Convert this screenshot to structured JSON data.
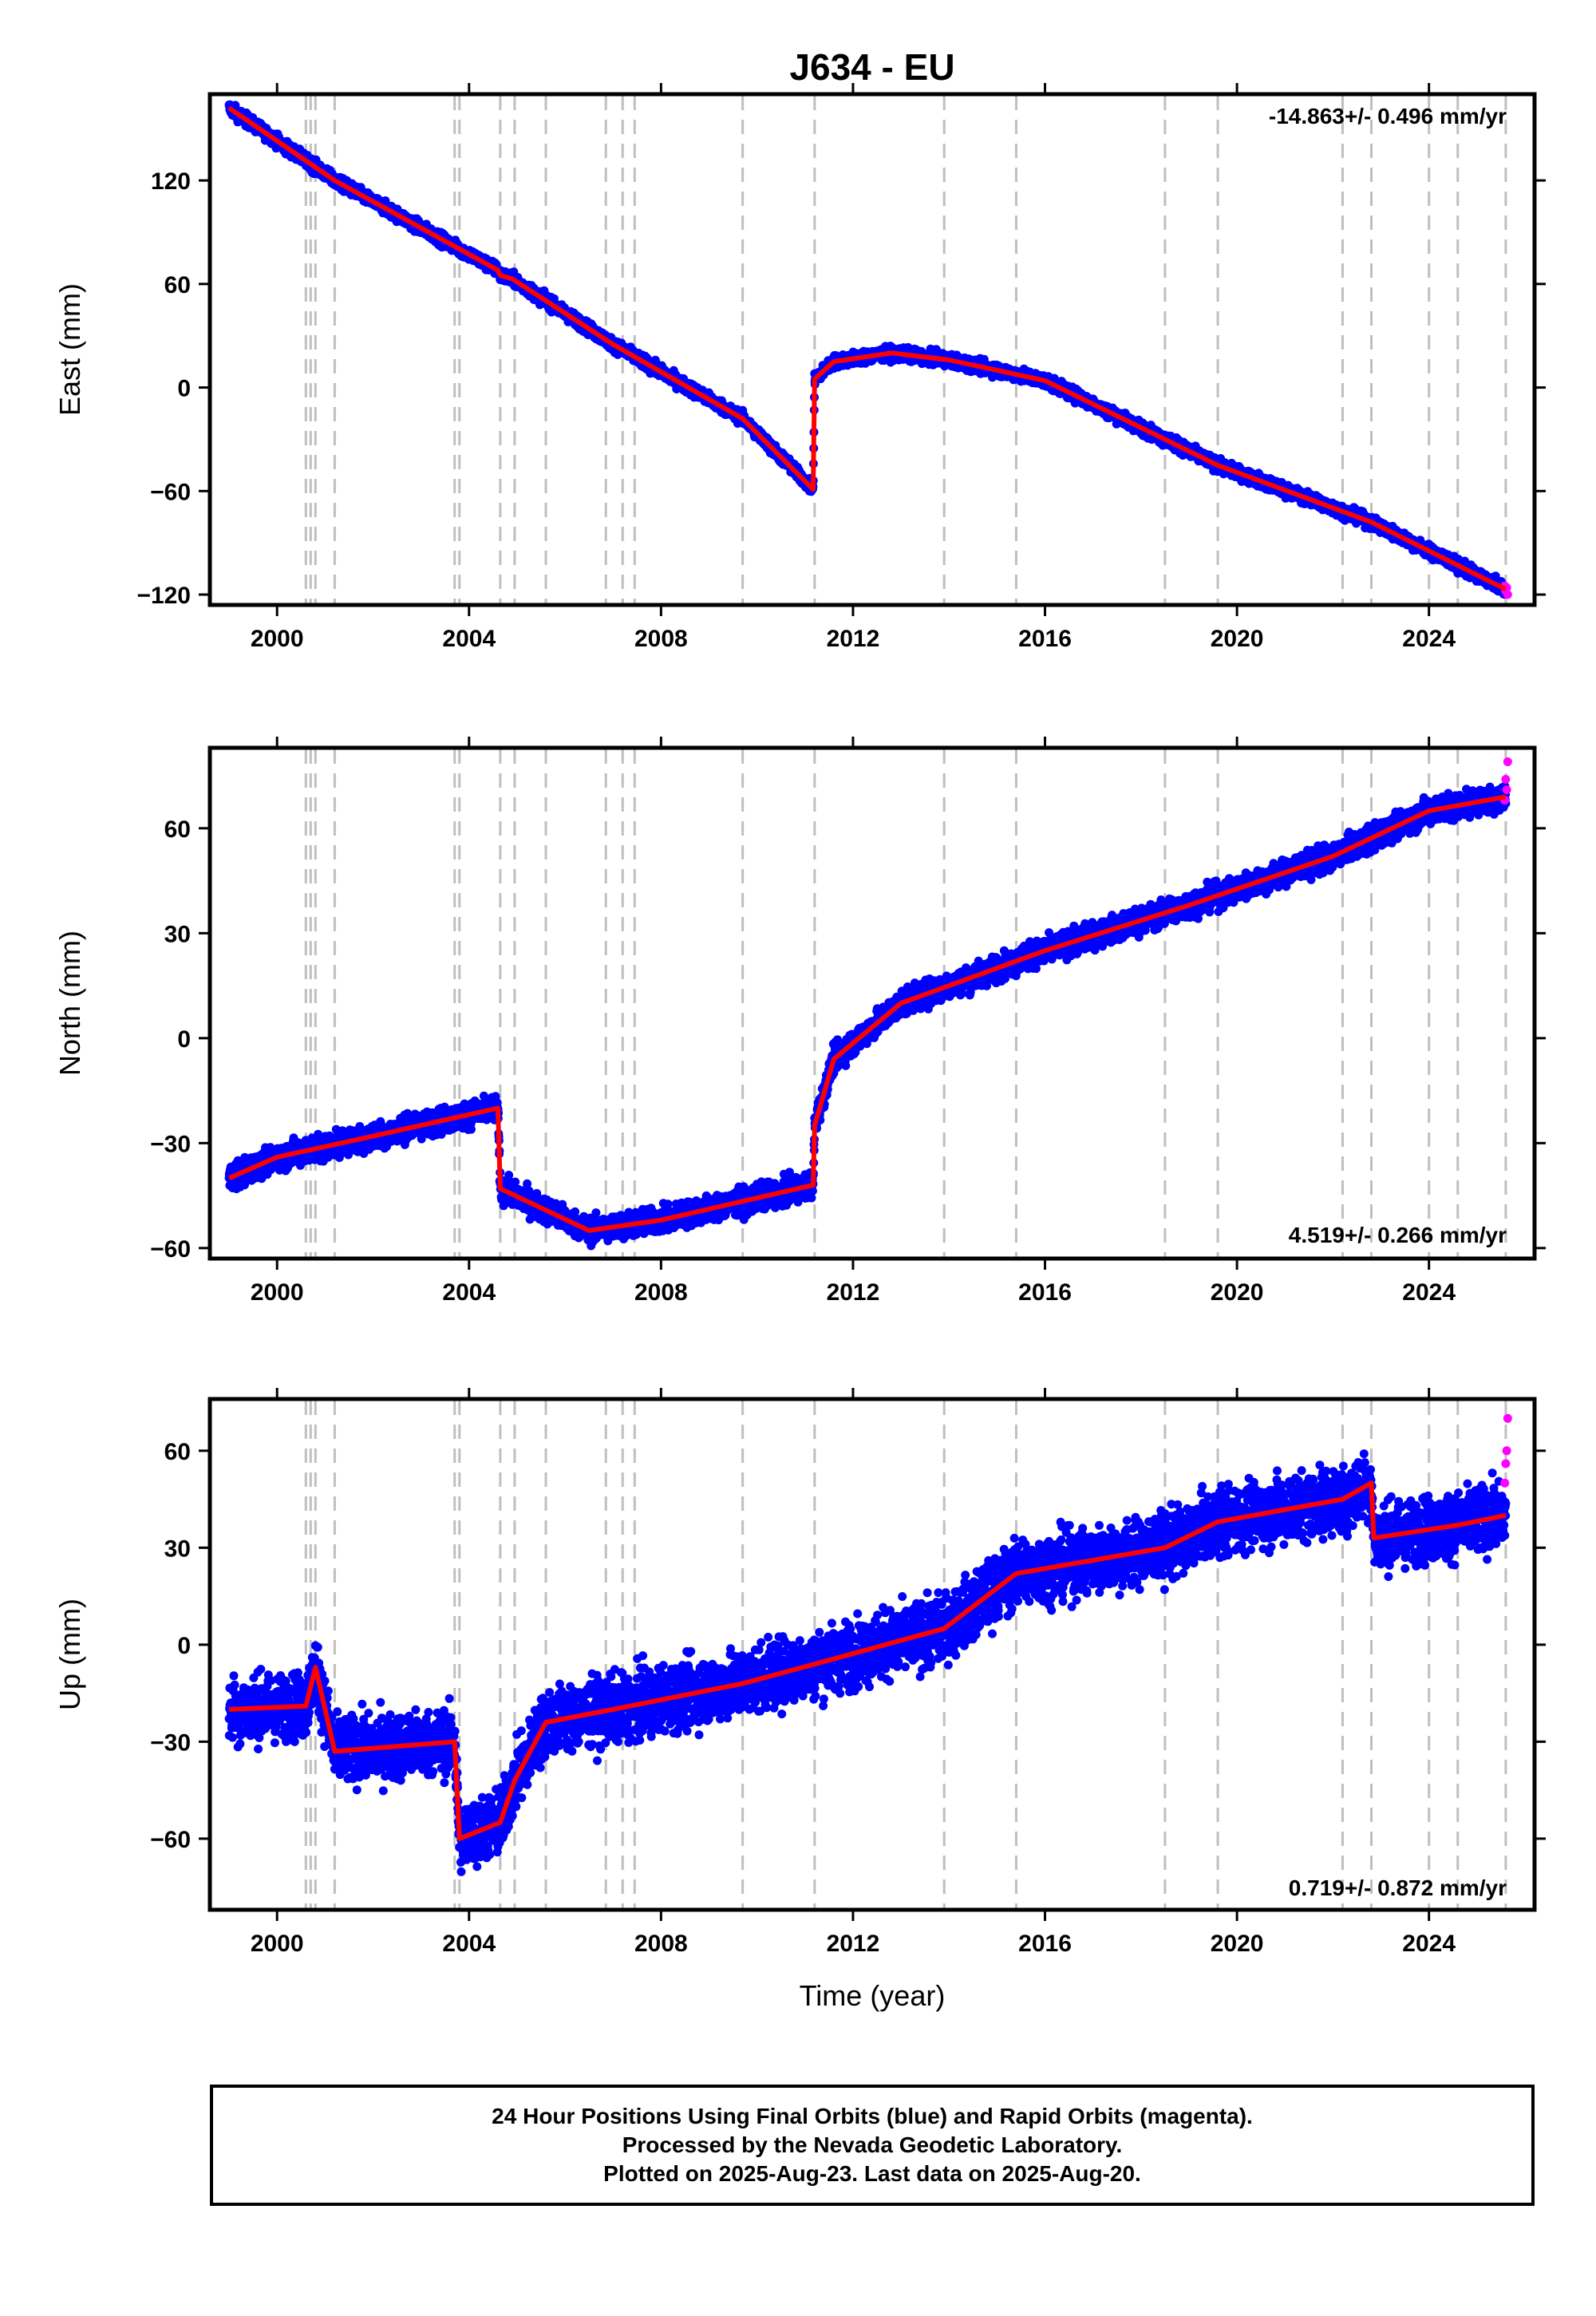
{
  "title": "J634 - EU",
  "xlabel": "Time (year)",
  "x_ticks": [
    "2000",
    "2004",
    "2008",
    "2012",
    "2016",
    "2020",
    "2024"
  ],
  "colors": {
    "final_orbits": "#0000ff",
    "rapid_orbits": "#ff00ff",
    "model": "#ff0000",
    "event_lines": "#bfbfbf"
  },
  "event_lines": [
    2000.6,
    2000.7,
    2000.8,
    2001.2,
    2003.7,
    2003.8,
    2004.65,
    2004.95,
    2005.6,
    2006.85,
    2007.2,
    2007.45,
    2009.7,
    2011.2,
    2013.9,
    2015.4,
    2018.5,
    2019.6,
    2022.2,
    2022.8,
    2024.0,
    2024.6,
    2025.6
  ],
  "chart_data": [
    {
      "type": "scatter",
      "panel": "east",
      "ylabel": "East (mm)",
      "rate_label": "-14.863+/- 0.496 mm/yr",
      "xlim": [
        1998.6,
        2026.2
      ],
      "ylim": [
        -126,
        170
      ],
      "y_ticks": [
        "120",
        "60",
        "0",
        "−60",
        "−120"
      ],
      "y_tick_values": [
        120,
        60,
        0,
        -60,
        -120
      ],
      "noise_mm": 2.5,
      "series": [
        {
          "name": "Final Orbits",
          "x": [
            1999.0,
            2001.2,
            2004.6,
            2004.65,
            2004.9,
            2007.0,
            2009.7,
            2011.17,
            2011.2,
            2011.6,
            2012.8,
            2014.0,
            2016.0,
            2019.6,
            2022.8,
            2024.6,
            2025.6
          ],
          "values": [
            162,
            120,
            68,
            65,
            63,
            25,
            -18,
            -59,
            5,
            15,
            20,
            16,
            4,
            -45,
            -78,
            -103,
            -117
          ]
        },
        {
          "name": "Rapid Orbits",
          "x": [
            2025.58,
            2025.6,
            2025.62,
            2025.64
          ],
          "values": [
            -115,
            -118,
            -116,
            -120
          ]
        },
        {
          "name": "Model",
          "x": [
            1999.0,
            2001.2,
            2004.6,
            2004.65,
            2004.9,
            2007.0,
            2009.7,
            2011.17,
            2011.2,
            2011.6,
            2012.8,
            2014.0,
            2016.0,
            2019.6,
            2022.8,
            2024.6,
            2025.6
          ],
          "values": [
            162,
            120,
            68,
            65,
            63,
            25,
            -18,
            -59,
            5,
            15,
            20,
            16,
            4,
            -45,
            -78,
            -103,
            -117
          ]
        }
      ]
    },
    {
      "type": "scatter",
      "panel": "north",
      "ylabel": "North (mm)",
      "rate_label": "4.519+/- 0.266 mm/yr",
      "xlim": [
        1998.6,
        2026.2
      ],
      "ylim": [
        -63,
        83
      ],
      "y_ticks": [
        "60",
        "30",
        "0",
        "−30",
        "−60"
      ],
      "y_tick_values": [
        60,
        30,
        0,
        -30,
        -60
      ],
      "noise_mm": 2.5,
      "series": [
        {
          "name": "Final Orbits",
          "x": [
            1999.0,
            2000.0,
            2002.0,
            2004.6,
            2004.65,
            2006.5,
            2008.0,
            2011.17,
            2011.2,
            2011.6,
            2013.0,
            2016.0,
            2019.0,
            2022.0,
            2024.0,
            2025.6
          ],
          "values": [
            -40,
            -34,
            -28,
            -20,
            -43,
            -55,
            -52,
            -42,
            -25,
            -6,
            10,
            25,
            38,
            52,
            65,
            69
          ]
        },
        {
          "name": "Rapid Orbits",
          "x": [
            2025.58,
            2025.6,
            2025.62,
            2025.64
          ],
          "values": [
            68,
            74,
            71,
            79
          ]
        },
        {
          "name": "Model",
          "x": [
            1999.0,
            2000.0,
            2002.0,
            2004.6,
            2004.65,
            2006.5,
            2008.0,
            2011.17,
            2011.2,
            2011.6,
            2013.0,
            2016.0,
            2019.0,
            2022.0,
            2024.0,
            2025.6
          ],
          "values": [
            -40,
            -34,
            -28,
            -20,
            -43,
            -55,
            -52,
            -42,
            -25,
            -6,
            10,
            25,
            38,
            52,
            65,
            69
          ]
        }
      ]
    },
    {
      "type": "scatter",
      "panel": "up",
      "ylabel": "Up (mm)",
      "rate_label": "0.719+/- 0.872 mm/yr",
      "xlim": [
        1998.6,
        2026.2
      ],
      "ylim": [
        -82,
        76
      ],
      "y_ticks": [
        "60",
        "30",
        "0",
        "−30",
        "−60"
      ],
      "y_tick_values": [
        60,
        30,
        0,
        -30,
        -60
      ],
      "noise_mm": 7,
      "series": [
        {
          "name": "Final Orbits",
          "x": [
            1999.0,
            2000.6,
            2000.8,
            2001.2,
            2003.7,
            2003.8,
            2004.65,
            2004.95,
            2005.6,
            2007.0,
            2009.7,
            2011.2,
            2013.9,
            2015.4,
            2018.5,
            2019.6,
            2022.2,
            2022.8,
            2022.85,
            2024.6,
            2025.6
          ],
          "values": [
            -20,
            -19,
            -7,
            -33,
            -30,
            -60,
            -55,
            -42,
            -24,
            -20,
            -12,
            -6,
            5,
            22,
            30,
            38,
            45,
            50,
            33,
            37,
            40
          ]
        },
        {
          "name": "Rapid Orbits",
          "x": [
            2025.58,
            2025.6,
            2025.62,
            2025.64
          ],
          "values": [
            50,
            56,
            60,
            70
          ]
        },
        {
          "name": "Model",
          "x": [
            1999.0,
            2000.6,
            2000.8,
            2001.2,
            2003.7,
            2003.8,
            2004.65,
            2004.95,
            2005.6,
            2007.0,
            2009.7,
            2011.2,
            2013.9,
            2015.4,
            2018.5,
            2019.6,
            2022.2,
            2022.8,
            2022.85,
            2024.6,
            2025.6
          ],
          "values": [
            -20,
            -19,
            -7,
            -33,
            -30,
            -60,
            -55,
            -42,
            -24,
            -20,
            -12,
            -6,
            5,
            22,
            30,
            38,
            45,
            50,
            33,
            37,
            40
          ]
        }
      ]
    }
  ],
  "footer": {
    "line1": "24 Hour Positions Using Final Orbits (blue) and Rapid Orbits (magenta).",
    "line2": "Processed by the Nevada Geodetic Laboratory.",
    "line3": "Plotted on 2025-Aug-23. Last data on 2025-Aug-20."
  }
}
